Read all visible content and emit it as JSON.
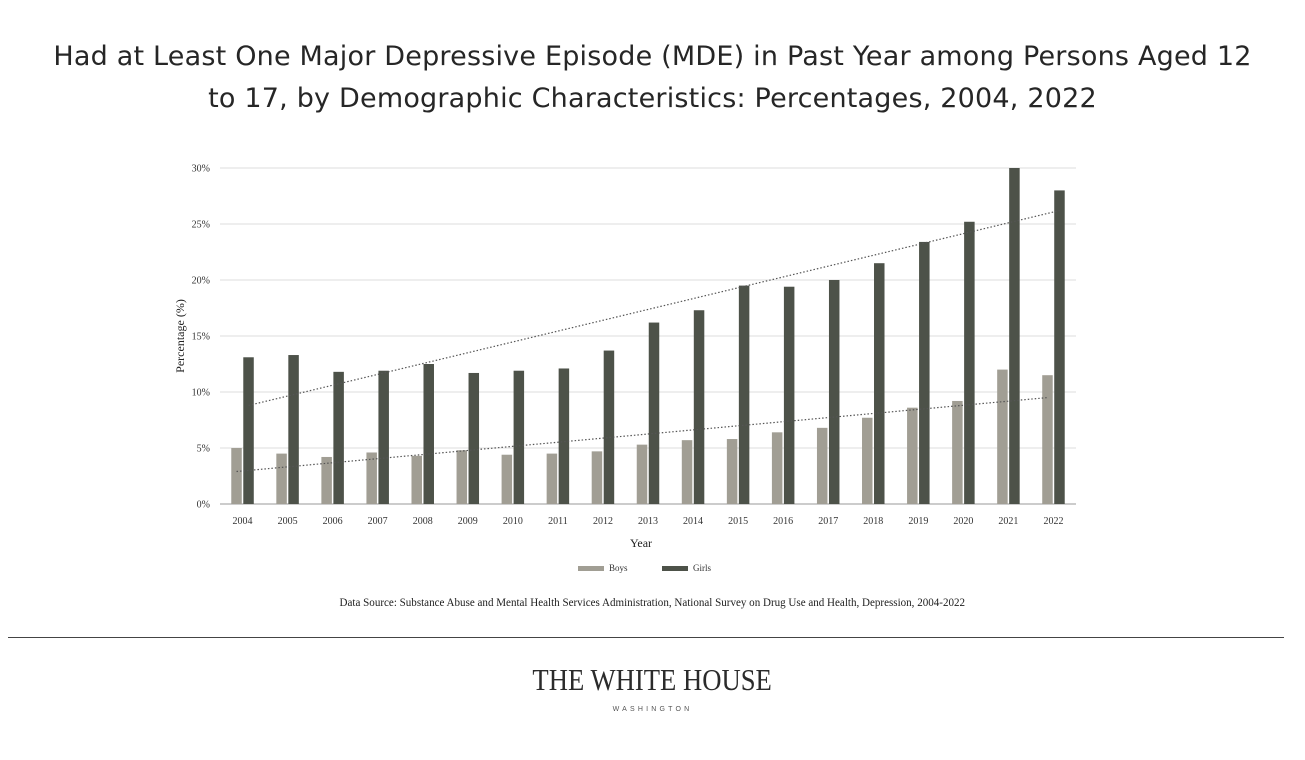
{
  "chart_data": {
    "type": "bar",
    "title": "Had at Least One Major Depressive Episode (MDE) in Past Year among Persons Aged 12 to 17, by Demographic Characteristics: Percentages, 2004, 2022",
    "xlabel": "Year",
    "ylabel": "Percentage (%)",
    "ylim": [
      0,
      30
    ],
    "yticks": [
      "0%",
      "5%",
      "10%",
      "15%",
      "20%",
      "25%",
      "30%"
    ],
    "grid": true,
    "legend_position": "bottom",
    "categories": [
      "2004",
      "2005",
      "2006",
      "2007",
      "2008",
      "2009",
      "2010",
      "2011",
      "2012",
      "2013",
      "2014",
      "2015",
      "2016",
      "2017",
      "2018",
      "2019",
      "2020",
      "2021",
      "2022"
    ],
    "series": [
      {
        "name": "Boys",
        "color": "#a19e94",
        "values": [
          5.0,
          4.5,
          4.2,
          4.6,
          4.3,
          4.8,
          4.4,
          4.5,
          4.7,
          5.3,
          5.7,
          5.8,
          6.4,
          6.8,
          7.7,
          8.6,
          9.2,
          12.0,
          11.5
        ],
        "trendline": [
          2.9,
          9.5
        ]
      },
      {
        "name": "Girls",
        "color": "#4d5249",
        "values": [
          13.1,
          13.3,
          11.8,
          11.9,
          12.5,
          11.7,
          11.9,
          12.1,
          13.7,
          16.2,
          17.3,
          19.5,
          19.4,
          20.0,
          21.5,
          23.4,
          25.2,
          30.0,
          28.0
        ],
        "trendline": [
          8.8,
          26.2
        ]
      }
    ]
  },
  "title_lines": [
    "Had at Least One Major Depressive Episode (MDE) in Past Year among Persons Aged 12",
    "to 17, by Demographic Characteristics: Percentages, 2004, 2022"
  ],
  "source": "Data Source: Substance Abuse and Mental Health Services Administration, National Survey on Drug Use and Health, Depression, 2004-2022",
  "footer": {
    "name": "THE WHITE HOUSE",
    "subtitle": "WASHINGTON"
  },
  "colors": {
    "grid": "#dddddd",
    "axis": "#999999",
    "trend": "#555555"
  }
}
